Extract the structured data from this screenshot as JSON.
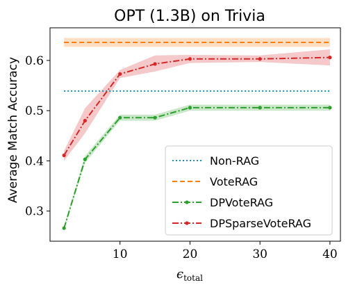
{
  "chart_data": {
    "type": "line",
    "title": "OPT (1.3B) on Trivia",
    "xlabel": {
      "main": "ϵ",
      "sub": "total"
    },
    "ylabel": "Average Match Accuracy",
    "xlim": [
      0,
      41.5
    ],
    "ylim": [
      0.24,
      0.665
    ],
    "xticks": [
      10,
      20,
      30,
      40
    ],
    "xtick_labels": [
      "10",
      "20",
      "30",
      "40"
    ],
    "yticks": [
      0.3,
      0.4,
      0.5,
      0.6
    ],
    "ytick_labels": [
      "0.3",
      "0.4",
      "0.5",
      "0.6"
    ],
    "grid": false,
    "legend_placement": "lower-right",
    "series": [
      {
        "name": "Non-RAG",
        "style": "dotted",
        "color": "#1f8fb3",
        "markers": false,
        "x": [
          2,
          40
        ],
        "y": [
          0.539,
          0.539
        ]
      },
      {
        "name": "VoteRAG",
        "style": "dashed",
        "color": "#ff7f0e",
        "markers": false,
        "x": [
          2,
          40
        ],
        "y": [
          0.636,
          0.636
        ],
        "band_lower": [
          0.627,
          0.627
        ],
        "band_upper": [
          0.645,
          0.645
        ]
      },
      {
        "name": "DPVoteRAG",
        "style": "dashdot",
        "color": "#2ca02c",
        "markers": true,
        "x": [
          2,
          5,
          10,
          15,
          20,
          30,
          40
        ],
        "y": [
          0.266,
          0.403,
          0.486,
          0.486,
          0.506,
          0.506,
          0.506
        ],
        "band_lower": [
          0.262,
          0.396,
          0.48,
          0.48,
          0.5,
          0.5,
          0.5
        ],
        "band_upper": [
          0.27,
          0.41,
          0.492,
          0.492,
          0.512,
          0.512,
          0.512
        ]
      },
      {
        "name": "DPSparseVoteRAG",
        "style": "dashdot",
        "color": "#d62728",
        "markers": true,
        "x": [
          2,
          5,
          10,
          15,
          20,
          30,
          40
        ],
        "y": [
          0.411,
          0.48,
          0.573,
          0.593,
          0.603,
          0.603,
          0.606
        ],
        "band_lower": [
          0.4,
          0.455,
          0.565,
          0.578,
          0.595,
          0.597,
          0.59
        ],
        "band_upper": [
          0.42,
          0.505,
          0.581,
          0.61,
          0.611,
          0.61,
          0.622
        ]
      }
    ]
  }
}
